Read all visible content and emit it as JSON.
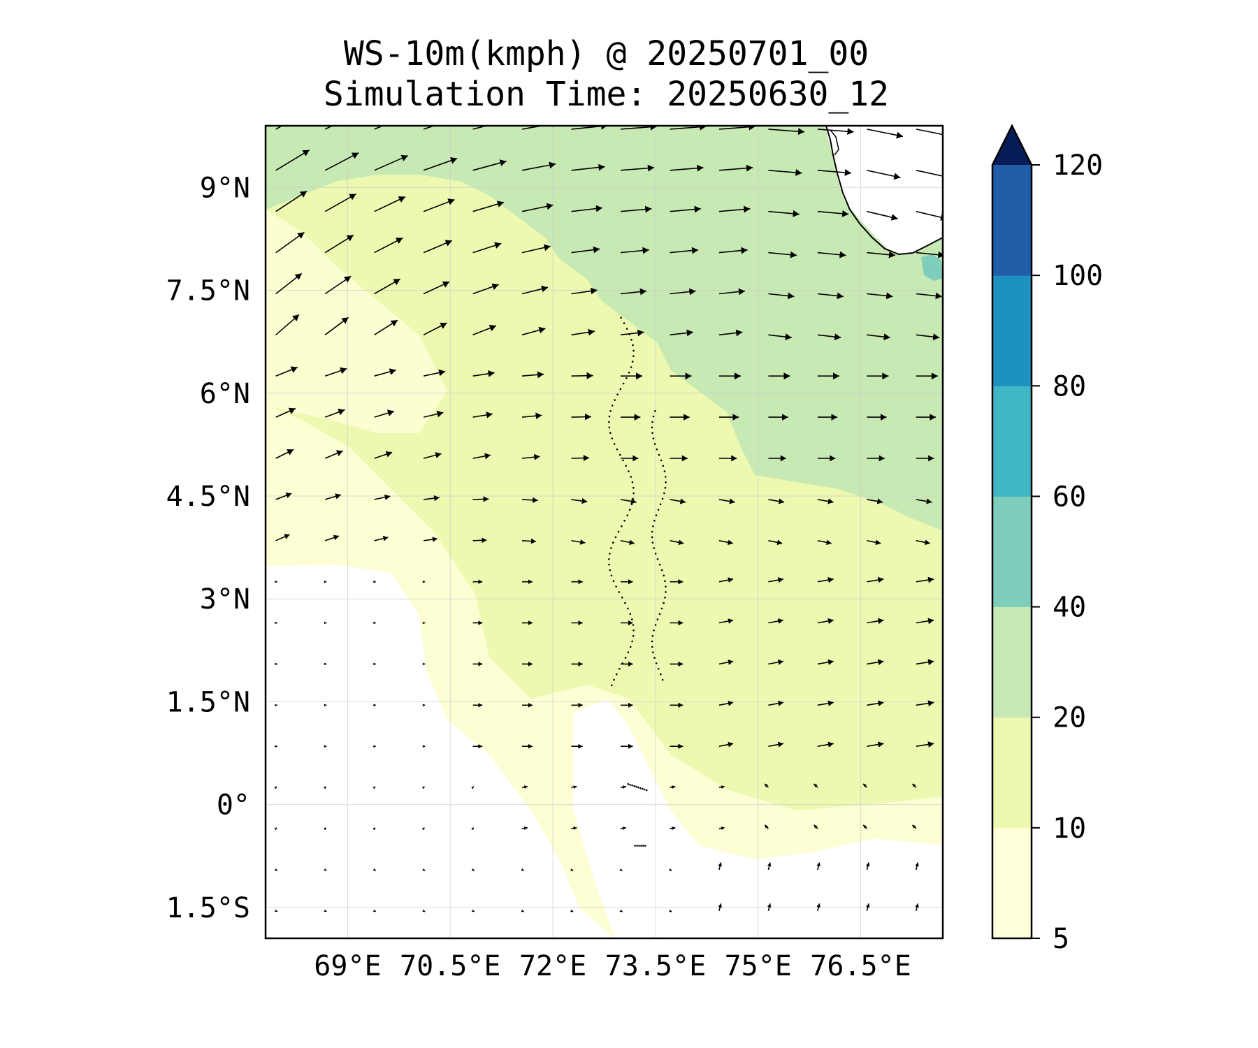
{
  "title": {
    "line1": "WS-10m(kmph) @ 20250701_00",
    "line2": "Simulation Time: 20250630_12"
  },
  "map": {
    "lon_range": [
      67.8,
      77.7
    ],
    "lat_range": [
      -1.95,
      9.9
    ],
    "lat_ticks": [
      {
        "value": 9.0,
        "label": "9°N"
      },
      {
        "value": 7.5,
        "label": "7.5°N"
      },
      {
        "value": 6.0,
        "label": "6°N"
      },
      {
        "value": 4.5,
        "label": "4.5°N"
      },
      {
        "value": 3.0,
        "label": "3°N"
      },
      {
        "value": 1.5,
        "label": "1.5°N"
      },
      {
        "value": 0.0,
        "label": "0°"
      },
      {
        "value": -1.5,
        "label": "1.5°S"
      }
    ],
    "lon_ticks": [
      {
        "value": 69.0,
        "label": "69°E"
      },
      {
        "value": 70.5,
        "label": "70.5°E"
      },
      {
        "value": 72.0,
        "label": "72°E"
      },
      {
        "value": 73.5,
        "label": "73.5°E"
      },
      {
        "value": 75.0,
        "label": "75°E"
      },
      {
        "value": 76.5,
        "label": "76.5°E"
      }
    ],
    "gridlines": true,
    "quiver": "wind vectors, westerly in north, weaker south of equator"
  },
  "colorbar": {
    "levels": [
      5,
      10,
      20,
      40,
      60,
      80,
      100,
      120
    ],
    "labels": [
      "5",
      "10",
      "20",
      "40",
      "60",
      "80",
      "100",
      "120"
    ],
    "colors": [
      "#ffffd9",
      "#edf8b1",
      "#c7e9b4",
      "#7fcdbb",
      "#41b6c4",
      "#1d91c0",
      "#225ea8",
      "#0c2c84"
    ],
    "extend": "max",
    "extend_color": "#081d58"
  }
}
